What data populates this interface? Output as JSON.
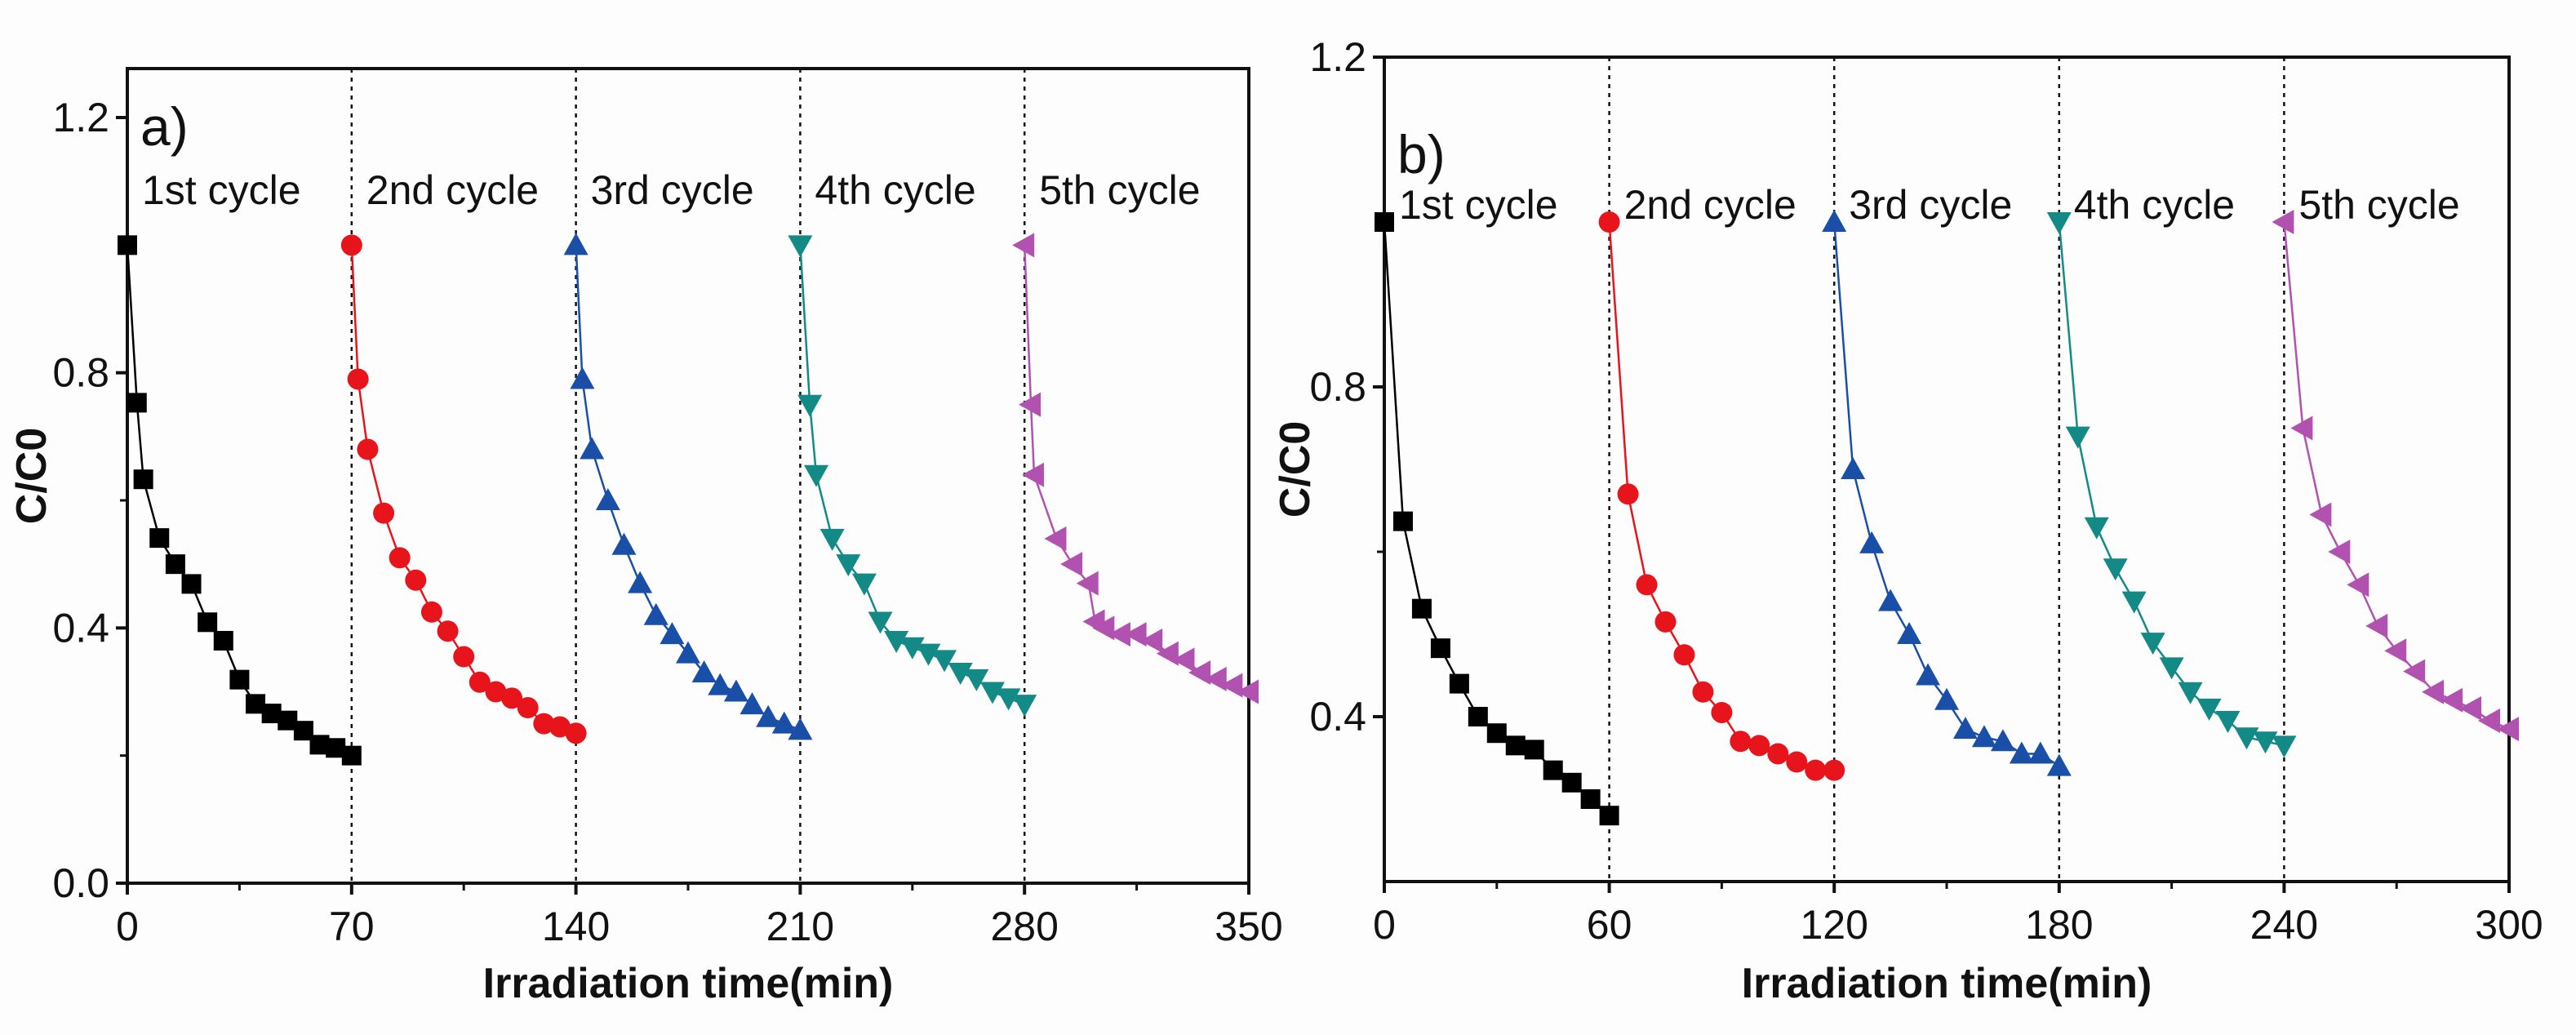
{
  "chart_data": [
    {
      "type": "line",
      "panel_label": "a)",
      "xlabel": "Irradiation time(min)",
      "ylabel": "C/C0",
      "xlim": [
        0,
        350
      ],
      "ylim": [
        0,
        1.3
      ],
      "xticks": [
        0,
        70,
        140,
        210,
        280,
        350
      ],
      "xtick_labels": [
        "0",
        "70",
        "140",
        "210",
        "280",
        "350"
      ],
      "yticks": [
        0,
        0.4,
        0.8,
        1.2
      ],
      "ytick_labels": [
        "0.0",
        "0.4",
        "0.8",
        "1.2"
      ],
      "cycle_boundaries": [
        70,
        140,
        210,
        280
      ],
      "cycle_labels": [
        "1st cycle",
        "2nd cycle",
        "3rd cycle",
        "4th cycle",
        "5th cycle"
      ],
      "series": [
        {
          "name": "1st cycle",
          "color": "#000000",
          "marker": "square",
          "x": [
            0,
            3,
            5,
            10,
            15,
            20,
            25,
            30,
            35,
            40,
            45,
            50,
            55,
            60,
            65,
            70
          ],
          "y": [
            1.0,
            0.753,
            0.633,
            0.541,
            0.5,
            0.469,
            0.409,
            0.38,
            0.319,
            0.281,
            0.266,
            0.255,
            0.239,
            0.217,
            0.212,
            0.2
          ]
        },
        {
          "name": "2nd cycle",
          "color": "#e8141c",
          "marker": "circle",
          "x": [
            70,
            72,
            75,
            80,
            85,
            90,
            95,
            100,
            105,
            110,
            115,
            120,
            125,
            130,
            135,
            140
          ],
          "y": [
            1.0,
            0.79,
            0.68,
            0.58,
            0.51,
            0.475,
            0.425,
            0.395,
            0.355,
            0.315,
            0.3,
            0.29,
            0.275,
            0.25,
            0.245,
            0.235
          ]
        },
        {
          "name": "3rd cycle",
          "color": "#1a4fa8",
          "marker": "triangle-up",
          "x": [
            140,
            142,
            145,
            150,
            155,
            160,
            165,
            170,
            175,
            180,
            185,
            190,
            195,
            200,
            205,
            210
          ],
          "y": [
            1.0,
            0.79,
            0.68,
            0.6,
            0.53,
            0.47,
            0.42,
            0.39,
            0.36,
            0.33,
            0.31,
            0.3,
            0.28,
            0.26,
            0.25,
            0.24
          ]
        },
        {
          "name": "4th cycle",
          "color": "#138a86",
          "marker": "triangle-down",
          "x": [
            210,
            213,
            215,
            220,
            225,
            230,
            235,
            240,
            245,
            250,
            255,
            260,
            265,
            270,
            275,
            280
          ],
          "y": [
            1.0,
            0.75,
            0.64,
            0.54,
            0.5,
            0.47,
            0.41,
            0.38,
            0.37,
            0.36,
            0.35,
            0.33,
            0.32,
            0.3,
            0.29,
            0.28
          ]
        },
        {
          "name": "5th cycle",
          "color": "#b152b0",
          "marker": "triangle-left",
          "x": [
            280,
            282,
            283,
            290,
            295,
            300,
            302,
            305,
            310,
            315,
            320,
            325,
            330,
            335,
            340,
            345,
            350
          ],
          "y": [
            1.0,
            0.75,
            0.64,
            0.54,
            0.5,
            0.47,
            0.41,
            0.4,
            0.39,
            0.39,
            0.38,
            0.36,
            0.35,
            0.33,
            0.32,
            0.31,
            0.3
          ]
        }
      ]
    },
    {
      "type": "line",
      "panel_label": "b)",
      "xlabel": "Irradiation time(min)",
      "ylabel": "C/C0",
      "xlim": [
        0,
        300
      ],
      "ylim": [
        0.2,
        1.2
      ],
      "xticks": [
        0,
        60,
        120,
        180,
        240,
        300
      ],
      "xtick_labels": [
        "0",
        "60",
        "120",
        "180",
        "240",
        "300"
      ],
      "yticks": [
        0.4,
        0.8,
        1.2
      ],
      "ytick_labels": [
        "0.4",
        "0.8",
        "1.2"
      ],
      "cycle_boundaries": [
        60,
        120,
        180,
        240
      ],
      "cycle_labels": [
        "1st cycle",
        "2nd cycle",
        "3rd cycle",
        "4th cycle",
        "5th cycle"
      ],
      "series": [
        {
          "name": "1st cycle",
          "color": "#000000",
          "marker": "square",
          "x": [
            0,
            5,
            10,
            15,
            20,
            25,
            30,
            35,
            40,
            45,
            50,
            55,
            60
          ],
          "y": [
            1.0,
            0.637,
            0.531,
            0.483,
            0.44,
            0.4,
            0.38,
            0.365,
            0.36,
            0.335,
            0.32,
            0.3,
            0.28
          ]
        },
        {
          "name": "2nd cycle",
          "color": "#e8141c",
          "marker": "circle",
          "x": [
            60,
            65,
            70,
            75,
            80,
            85,
            90,
            95,
            100,
            105,
            110,
            115,
            120
          ],
          "y": [
            1.0,
            0.67,
            0.56,
            0.515,
            0.475,
            0.43,
            0.405,
            0.37,
            0.365,
            0.355,
            0.345,
            0.335,
            0.335
          ]
        },
        {
          "name": "3rd cycle",
          "color": "#1a4fa8",
          "marker": "triangle-up",
          "x": [
            120,
            125,
            130,
            135,
            140,
            145,
            150,
            155,
            160,
            165,
            170,
            175,
            180
          ],
          "y": [
            1.0,
            0.7,
            0.61,
            0.54,
            0.5,
            0.45,
            0.42,
            0.385,
            0.375,
            0.37,
            0.355,
            0.355,
            0.34
          ]
        },
        {
          "name": "4th cycle",
          "color": "#138a86",
          "marker": "triangle-down",
          "x": [
            180,
            185,
            190,
            195,
            200,
            205,
            210,
            215,
            220,
            225,
            230,
            235,
            240
          ],
          "y": [
            1.0,
            0.74,
            0.63,
            0.58,
            0.54,
            0.49,
            0.46,
            0.43,
            0.41,
            0.395,
            0.375,
            0.37,
            0.365
          ]
        },
        {
          "name": "5th cycle",
          "color": "#b152b0",
          "marker": "triangle-left",
          "x": [
            240,
            245,
            250,
            255,
            260,
            265,
            270,
            275,
            280,
            285,
            290,
            295,
            300
          ],
          "y": [
            1.0,
            0.75,
            0.645,
            0.6,
            0.56,
            0.51,
            0.48,
            0.455,
            0.43,
            0.42,
            0.41,
            0.395,
            0.385
          ]
        }
      ]
    }
  ]
}
